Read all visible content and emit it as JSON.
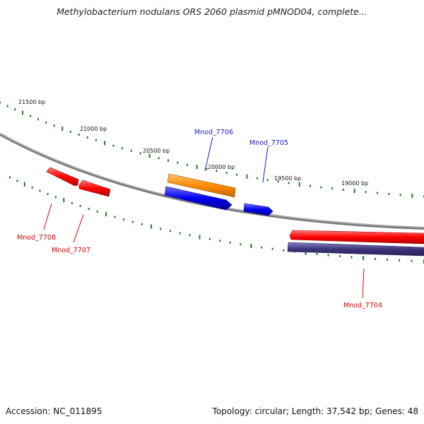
{
  "title": "Methylobacterium nodulans ORS 2060 plasmid pMNOD04, complete...",
  "footer": {
    "accession": "Accession: NC_011895",
    "summary": "Topology: circular; Length: 37,542 bp; Genes: 48"
  },
  "scale_labels": [
    "21500 bp",
    "21000 bp",
    "20500 bp",
    "20000 bp",
    "19500 bp",
    "19000 bp"
  ],
  "genes": [
    {
      "name": "Mnod_7708",
      "color": "#dd0000"
    },
    {
      "name": "Mnod_7707",
      "color": "#dd0000"
    },
    {
      "name": "Mnod_7706",
      "color": "#1a1acc"
    },
    {
      "name": "Mnod_7705",
      "color": "#1a1acc"
    },
    {
      "name": "Mnod_7704",
      "color": "#dd0000"
    }
  ],
  "colors": {
    "backbone": "#808080",
    "ticks": "#1f7a1f",
    "forward_feature": "#ff0000",
    "reverse_feature": "#0000ee",
    "orange_feature": "#ff8c00",
    "navy_feature": "#3d357a"
  }
}
